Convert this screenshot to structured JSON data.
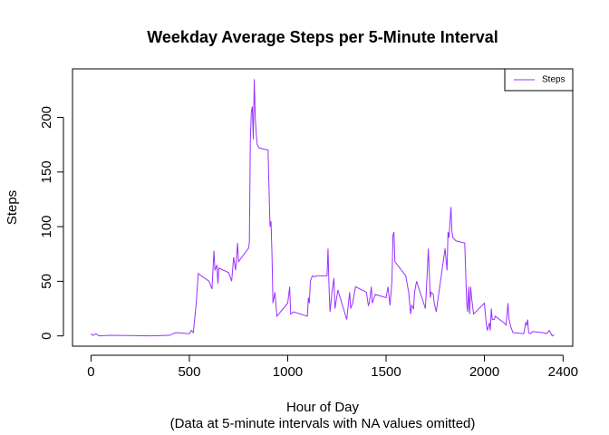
{
  "chart_data": {
    "type": "line",
    "title": "Weekday Average Steps per 5-Minute Interval",
    "x_label": "Hour of Day",
    "x_sublabel": "(Data at 5-minute intervals with NA values omitted)",
    "y_label": "Steps",
    "x": [
      0,
      10,
      25,
      40,
      100,
      200,
      300,
      400,
      430,
      500,
      510,
      520,
      535,
      545,
      600,
      615,
      625,
      630,
      640,
      645,
      650,
      700,
      715,
      725,
      735,
      745,
      750,
      800,
      805,
      810,
      815,
      820,
      825,
      830,
      835,
      840,
      845,
      855,
      900,
      910,
      915,
      920,
      925,
      935,
      945,
      1000,
      1010,
      1015,
      1030,
      1100,
      1105,
      1110,
      1115,
      1125,
      1135,
      1145,
      1200,
      1205,
      1210,
      1215,
      1225,
      1235,
      1240,
      1255,
      1300,
      1315,
      1320,
      1330,
      1345,
      1400,
      1410,
      1415,
      1425,
      1430,
      1445,
      1500,
      1510,
      1520,
      1530,
      1535,
      1540,
      1545,
      1600,
      1615,
      1625,
      1630,
      1640,
      1645,
      1655,
      1700,
      1710,
      1715,
      1725,
      1730,
      1740,
      1745,
      1755,
      1800,
      1810,
      1815,
      1820,
      1830,
      1835,
      1840,
      1855,
      1900,
      1910,
      1915,
      1920,
      1925,
      1930,
      1935,
      1945,
      2000,
      2010,
      2015,
      2025,
      2030,
      2035,
      2040,
      2050,
      2055,
      2100,
      2110,
      2120,
      2125,
      2135,
      2145,
      2200,
      2210,
      2215,
      2220,
      2225,
      2235,
      2245,
      2300,
      2315,
      2330,
      2345,
      2355
    ],
    "series": [
      {
        "name": "Steps",
        "color": "#9b30ff",
        "values": [
          2,
          0.5,
          2,
          0,
          0.5,
          0.3,
          0,
          0.5,
          3,
          2,
          5,
          3,
          30,
          57,
          50,
          43,
          78,
          60,
          65,
          48,
          62,
          58,
          50,
          72,
          60,
          85,
          68,
          80,
          85,
          178,
          205,
          210,
          180,
          235,
          200,
          185,
          175,
          172,
          170,
          100,
          105,
          75,
          30,
          40,
          18,
          30,
          45,
          20,
          22,
          18,
          35,
          30,
          50,
          55,
          54,
          55,
          55,
          80,
          45,
          22,
          40,
          53,
          25,
          42,
          15,
          40,
          25,
          30,
          45,
          40,
          28,
          30,
          45,
          30,
          38,
          35,
          45,
          28,
          50,
          92,
          95,
          68,
          55,
          40,
          20,
          28,
          25,
          40,
          50,
          25,
          60,
          80,
          35,
          40,
          38,
          30,
          22,
          80,
          60,
          95,
          90,
          118,
          95,
          90,
          87,
          85,
          30,
          22,
          45,
          20,
          45,
          35,
          20,
          30,
          10,
          5,
          12,
          5,
          25,
          15,
          15,
          18,
          12,
          10,
          30,
          15,
          8,
          3,
          2,
          12,
          10,
          15,
          3,
          2,
          4,
          3,
          2,
          5,
          0,
          1
        ]
      }
    ],
    "xlim": [
      -94.2,
      2449.2
    ],
    "ylim": [
      -9.4,
      244.4
    ],
    "xticks": [
      0,
      500,
      1000,
      1500,
      2000,
      2400
    ],
    "yticks": [
      0,
      50,
      100,
      150,
      200
    ],
    "legend": "topright"
  }
}
